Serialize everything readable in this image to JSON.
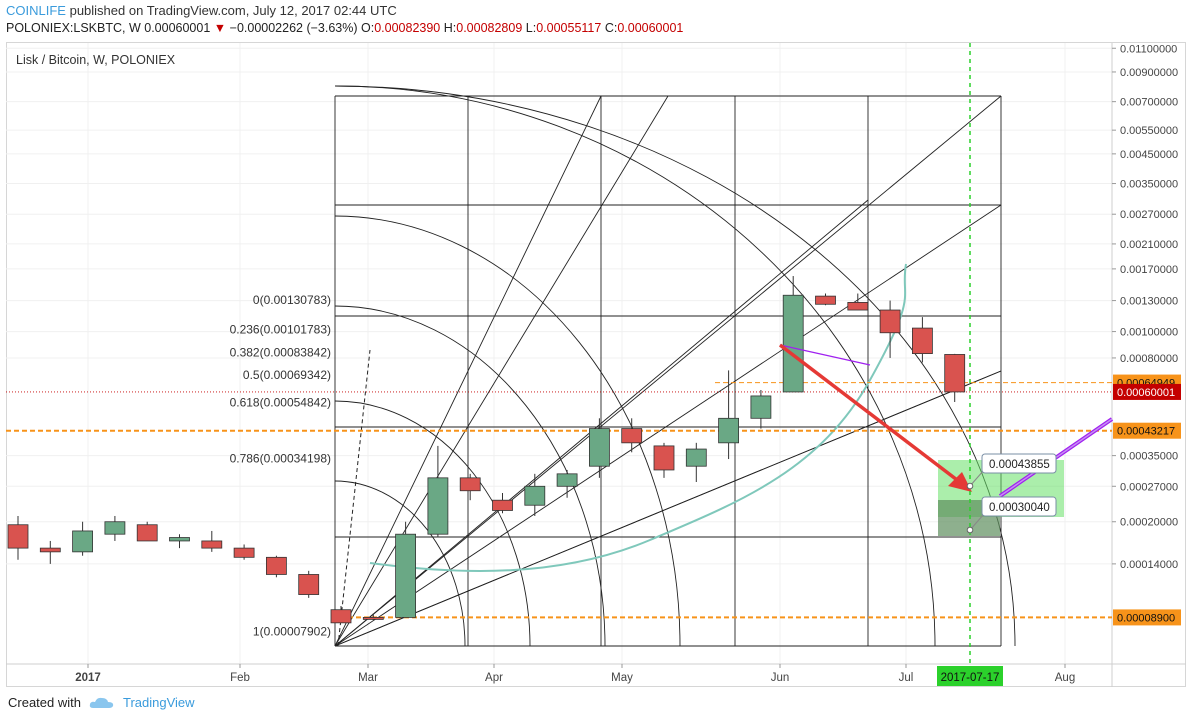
{
  "header": {
    "author": "COINLIFE",
    "published_text": "published on TradingView.com, July 12, 2017 02:44 UTC",
    "symbol": "POLONIEX:LSKBTC, W",
    "last": "0.00060001",
    "change_arrow": "▼",
    "change": "−0.00002262 (−3.63%)",
    "o_label": "O:",
    "o_value": "0.00082390",
    "h_label": "H:",
    "h_value": "0.00082809",
    "l_label": "L:",
    "l_value": "0.00055117",
    "c_label": "C:",
    "c_value": "0.00060001"
  },
  "pane_title": "Lisk / Bitcoin, W, POLONIEX",
  "footer": {
    "created_with": "Created with",
    "brand": "TradingView"
  },
  "colors": {
    "up": "#6aa885",
    "down": "#d9534f",
    "grid": "#f0f0f0",
    "orange": "#f7931a",
    "arrow": "#e53935",
    "curve": "#7fc8bb",
    "purple": "#a020f0",
    "green_zone": "#66e066",
    "dark_zone": "#5e8f5e"
  },
  "chart_data": {
    "type": "candlestick",
    "y_scale": "log",
    "ylim": [
      6e-05,
      0.0115
    ],
    "x_axis_ticks": [
      "2017",
      "Feb",
      "Mar",
      "Apr",
      "May",
      "Jun",
      "Jul",
      "Aug"
    ],
    "x_highlight": "2017-07-17",
    "y_axis_ticks": [
      "0.01100000",
      "0.00900000",
      "0.00700000",
      "0.00550000",
      "0.00450000",
      "0.00350000",
      "0.00270000",
      "0.00210000",
      "0.00170000",
      "0.00130000",
      "0.00100000",
      "0.00080000",
      "0.00035000",
      "0.00027000",
      "0.00020000",
      "0.00014000"
    ],
    "price_labels": [
      {
        "value": "0.00064949",
        "y": 0.00064949,
        "style": "orange"
      },
      {
        "value": "0.00060001",
        "y": 0.00060001,
        "style": "red"
      },
      {
        "value": "0.00043217",
        "y": 0.00043217,
        "style": "orange"
      },
      {
        "value": "0.00008900",
        "y": 8.9e-05,
        "style": "orange"
      }
    ],
    "fib_levels": [
      {
        "label": "0(0.00130783)",
        "value": 0.00130783
      },
      {
        "label": "0.236(0.00101783)",
        "value": 0.00101783
      },
      {
        "label": "0.382(0.00083842)",
        "value": 0.00083842
      },
      {
        "label": "0.5(0.00069342)",
        "value": 0.00069342
      },
      {
        "label": "0.618(0.00054842)",
        "value": 0.00054842
      },
      {
        "label": "0.786(0.00034198)",
        "value": 0.00034198
      },
      {
        "label": "1(0.00007902)",
        "value": 7.902e-05
      }
    ],
    "callouts": [
      {
        "value": "0.00043855",
        "y": 0.00043855
      },
      {
        "value": "0.00030040",
        "y": 0.0003004
      }
    ],
    "candles": [
      {
        "o": 0.000195,
        "h": 0.00021,
        "l": 0.000145,
        "c": 0.00016
      },
      {
        "o": 0.00016,
        "h": 0.00017,
        "l": 0.00014,
        "c": 0.000155
      },
      {
        "o": 0.000155,
        "h": 0.0002,
        "l": 0.00015,
        "c": 0.000185
      },
      {
        "o": 0.00018,
        "h": 0.00021,
        "l": 0.00017,
        "c": 0.0002
      },
      {
        "o": 0.000195,
        "h": 0.0002,
        "l": 0.00017,
        "c": 0.00017
      },
      {
        "o": 0.00017,
        "h": 0.00018,
        "l": 0.00016,
        "c": 0.000175
      },
      {
        "o": 0.00017,
        "h": 0.000185,
        "l": 0.000155,
        "c": 0.00016
      },
      {
        "o": 0.00016,
        "h": 0.000165,
        "l": 0.000145,
        "c": 0.000148
      },
      {
        "o": 0.000148,
        "h": 0.00015,
        "l": 0.000125,
        "c": 0.000128
      },
      {
        "o": 0.000128,
        "h": 0.000132,
        "l": 0.000105,
        "c": 0.000108
      },
      {
        "o": 9.5e-05,
        "h": 9.8e-05,
        "l": 8.8e-05,
        "c": 8.5e-05
      },
      {
        "o": 8.9e-05,
        "h": 9.2e-05,
        "l": 8.7e-05,
        "c": 8.8e-05
      },
      {
        "o": 8.9e-05,
        "h": 0.0002,
        "l": 8.9e-05,
        "c": 0.00018
      },
      {
        "o": 0.00018,
        "h": 0.00038,
        "l": 0.000175,
        "c": 0.00029
      },
      {
        "o": 0.00029,
        "h": 0.0003,
        "l": 0.00024,
        "c": 0.00026
      },
      {
        "o": 0.00024,
        "h": 0.000255,
        "l": 0.000215,
        "c": 0.00022
      },
      {
        "o": 0.00023,
        "h": 0.0003,
        "l": 0.00021,
        "c": 0.00027
      },
      {
        "o": 0.00027,
        "h": 0.00031,
        "l": 0.000245,
        "c": 0.0003
      },
      {
        "o": 0.00032,
        "h": 0.00048,
        "l": 0.00029,
        "c": 0.00044
      },
      {
        "o": 0.00044,
        "h": 0.00048,
        "l": 0.00036,
        "c": 0.00039
      },
      {
        "o": 0.00038,
        "h": 0.00039,
        "l": 0.00029,
        "c": 0.00031
      },
      {
        "o": 0.00032,
        "h": 0.00039,
        "l": 0.00028,
        "c": 0.00037
      },
      {
        "o": 0.00039,
        "h": 0.00072,
        "l": 0.00034,
        "c": 0.00048
      },
      {
        "o": 0.00048,
        "h": 0.00061,
        "l": 0.00044,
        "c": 0.00058
      },
      {
        "o": 0.0006,
        "h": 0.0016,
        "l": 0.0006,
        "c": 0.00136
      },
      {
        "o": 0.00135,
        "h": 0.00138,
        "l": 0.00125,
        "c": 0.00126
      },
      {
        "o": 0.00128,
        "h": 0.00138,
        "l": 0.0012,
        "c": 0.0012
      },
      {
        "o": 0.0012,
        "h": 0.0013,
        "l": 0.0008,
        "c": 0.00099
      },
      {
        "o": 0.00103,
        "h": 0.00113,
        "l": 0.00077,
        "c": 0.00083
      },
      {
        "o": 0.000824,
        "h": 0.000828,
        "l": 0.000551,
        "c": 0.0006
      }
    ]
  }
}
